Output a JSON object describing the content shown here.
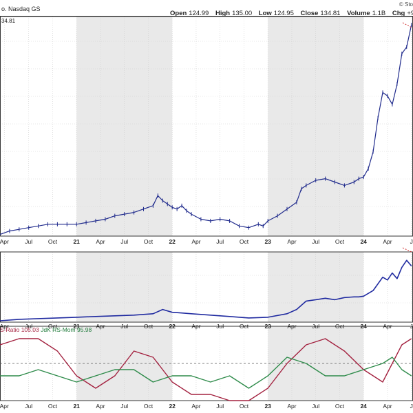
{
  "header": {
    "exchange": "o. Nasdaq GS",
    "open_label": "Open",
    "open_value": "124.99",
    "high_label": "High",
    "high_value": "135.00",
    "low_label": "Low",
    "low_value": "124.95",
    "close_label": "Close",
    "close_value": "134.81",
    "volume_label": "Volume",
    "volume_value": "1.1B",
    "chg_label": "Chg",
    "chg_value": "+9,",
    "credit": "© Sto"
  },
  "price_tag": "34.81",
  "indicator": {
    "rs_ratio_text": "S-Ratio 105.03",
    "rs_mom_text": "JdK RS-Mom 95.98"
  },
  "colors": {
    "price": "#1f2a8c",
    "rs_line": "#1f2aa0",
    "rs_ratio": "#a3213f",
    "rs_mom": "#2e8b4a",
    "shade": "#e9e9e9",
    "grid": "#cfcfcf"
  },
  "x_labels": [
    {
      "t": 0.045,
      "label": "Apr"
    },
    {
      "t": 0.3,
      "label": "Jul"
    },
    {
      "t": 0.55,
      "label": "Oct"
    },
    {
      "t": 0.8,
      "label": "21"
    },
    {
      "t": 1.05,
      "label": "Apr"
    },
    {
      "t": 1.3,
      "label": "Jul"
    },
    {
      "t": 1.55,
      "label": "Oct"
    },
    {
      "t": 1.8,
      "label": "22"
    },
    {
      "t": 2.05,
      "label": "Apr"
    },
    {
      "t": 2.3,
      "label": "Jul"
    },
    {
      "t": 2.55,
      "label": "Oct"
    },
    {
      "t": 2.8,
      "label": "23"
    },
    {
      "t": 3.05,
      "label": "Apr"
    },
    {
      "t": 3.3,
      "label": "Jul"
    },
    {
      "t": 3.55,
      "label": "Oct"
    },
    {
      "t": 3.8,
      "label": "24"
    },
    {
      "t": 4.05,
      "label": "Apr"
    },
    {
      "t": 4.3,
      "label": "J"
    }
  ],
  "shaded_years": [
    [
      0.8,
      1.8
    ],
    [
      2.8,
      3.8
    ]
  ],
  "chart_data": [
    {
      "type": "line",
      "name": "price",
      "ylim": [
        10,
        140
      ],
      "x": [
        0.0,
        0.1,
        0.2,
        0.3,
        0.4,
        0.5,
        0.6,
        0.7,
        0.8,
        0.9,
        1.0,
        1.1,
        1.2,
        1.3,
        1.4,
        1.5,
        1.6,
        1.65,
        1.7,
        1.75,
        1.8,
        1.85,
        1.9,
        1.95,
        2.0,
        2.1,
        2.2,
        2.3,
        2.4,
        2.5,
        2.6,
        2.7,
        2.75,
        2.8,
        2.9,
        3.0,
        3.1,
        3.15,
        3.2,
        3.3,
        3.4,
        3.5,
        3.6,
        3.7,
        3.75,
        3.8,
        3.85,
        3.9,
        3.95,
        4.0,
        4.05,
        4.1,
        4.15,
        4.2,
        4.25,
        4.3
      ],
      "y": [
        11,
        13,
        14,
        15,
        16,
        17,
        17,
        17,
        17,
        18,
        19,
        20,
        22,
        23,
        24,
        26,
        28,
        34,
        31,
        29,
        27,
        26,
        28,
        25,
        23,
        20,
        19,
        20,
        19,
        16,
        15,
        17,
        16,
        19,
        22,
        26,
        30,
        38,
        40,
        43,
        44,
        42,
        40,
        42,
        44,
        45,
        50,
        60,
        80,
        95,
        93,
        88,
        100,
        118,
        122,
        135
      ]
    },
    {
      "type": "line",
      "name": "relative strength",
      "ylim": [
        0,
        100
      ],
      "x": [
        0.0,
        0.2,
        0.4,
        0.6,
        0.8,
        1.0,
        1.2,
        1.4,
        1.6,
        1.7,
        1.8,
        1.9,
        2.0,
        2.2,
        2.4,
        2.6,
        2.8,
        3.0,
        3.1,
        3.2,
        3.3,
        3.4,
        3.5,
        3.6,
        3.7,
        3.75,
        3.8,
        3.9,
        4.0,
        4.05,
        4.1,
        4.15,
        4.2,
        4.25,
        4.3
      ],
      "y": [
        2,
        4,
        5,
        6,
        7,
        8,
        9,
        10,
        12,
        18,
        14,
        13,
        12,
        10,
        8,
        6,
        7,
        12,
        18,
        30,
        32,
        34,
        32,
        35,
        36,
        36,
        37,
        45,
        64,
        60,
        70,
        62,
        78,
        88,
        80
      ]
    },
    {
      "type": "line",
      "name": "RS-Ratio",
      "ylim": [
        94,
        106
      ],
      "x": [
        0.0,
        0.2,
        0.4,
        0.6,
        0.8,
        1.0,
        1.2,
        1.4,
        1.6,
        1.8,
        2.0,
        2.2,
        2.4,
        2.6,
        2.8,
        3.0,
        3.2,
        3.4,
        3.6,
        3.8,
        4.0,
        4.1,
        4.2,
        4.3
      ],
      "y": [
        103,
        104,
        104,
        102,
        98,
        96,
        98,
        102,
        101,
        97,
        95,
        95,
        94,
        94,
        96,
        100,
        103,
        104,
        102,
        99,
        97,
        100,
        103,
        104
      ]
    },
    {
      "type": "line",
      "name": "RS-Momentum",
      "ylim": [
        94,
        106
      ],
      "x": [
        0.0,
        0.2,
        0.4,
        0.6,
        0.8,
        1.0,
        1.2,
        1.4,
        1.6,
        1.8,
        2.0,
        2.2,
        2.4,
        2.6,
        2.8,
        3.0,
        3.2,
        3.4,
        3.6,
        3.8,
        4.0,
        4.1,
        4.2,
        4.3
      ],
      "y": [
        98,
        98,
        99,
        98,
        97,
        98,
        99,
        99,
        97,
        98,
        98,
        97,
        98,
        96,
        98,
        101,
        100,
        98,
        98,
        99,
        100,
        101,
        99,
        98
      ]
    }
  ]
}
